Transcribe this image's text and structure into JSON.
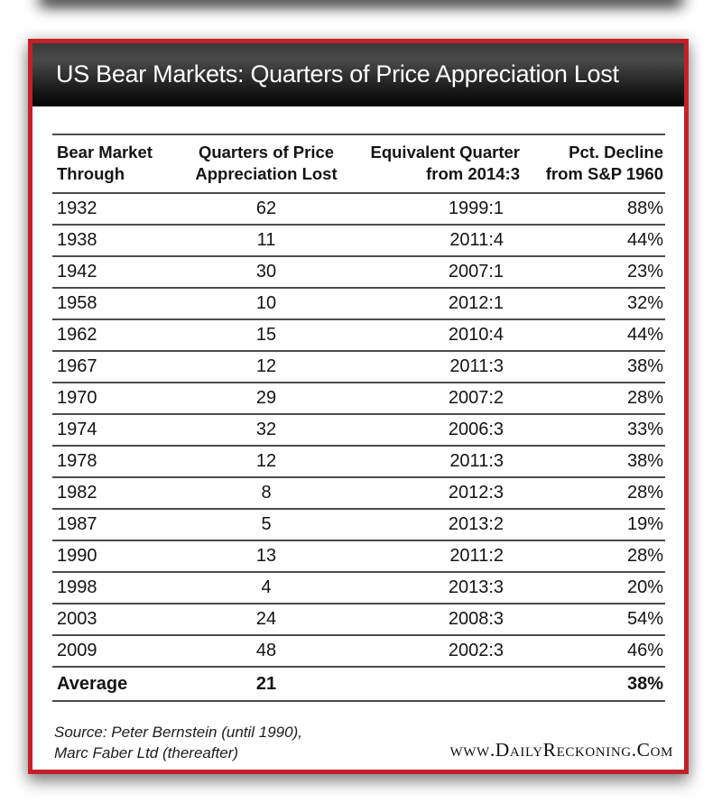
{
  "title": "US Bear Markets: Quarters of Price Appreciation Lost",
  "table": {
    "columns": [
      {
        "line1": "Bear Market",
        "line2": "Through"
      },
      {
        "line1": "Quarters of Price",
        "line2": "Appreciation Lost"
      },
      {
        "line1": "Equivalent Quarter",
        "line2": "from 2014:3"
      },
      {
        "line1": "Pct. Decline",
        "line2": "from S&P 1960"
      }
    ],
    "rows": [
      {
        "year": "1932",
        "quarters": "62",
        "equivalent": "1999:1",
        "decline": "88%"
      },
      {
        "year": "1938",
        "quarters": "11",
        "equivalent": "2011:4",
        "decline": "44%"
      },
      {
        "year": "1942",
        "quarters": "30",
        "equivalent": "2007:1",
        "decline": "23%"
      },
      {
        "year": "1958",
        "quarters": "10",
        "equivalent": "2012:1",
        "decline": "32%"
      },
      {
        "year": "1962",
        "quarters": "15",
        "equivalent": "2010:4",
        "decline": "44%"
      },
      {
        "year": "1967",
        "quarters": "12",
        "equivalent": "2011:3",
        "decline": "38%"
      },
      {
        "year": "1970",
        "quarters": "29",
        "equivalent": "2007:2",
        "decline": "28%"
      },
      {
        "year": "1974",
        "quarters": "32",
        "equivalent": "2006:3",
        "decline": "33%"
      },
      {
        "year": "1978",
        "quarters": "12",
        "equivalent": "2011:3",
        "decline": "38%"
      },
      {
        "year": "1982",
        "quarters": "8",
        "equivalent": "2012:3",
        "decline": "28%"
      },
      {
        "year": "1987",
        "quarters": "5",
        "equivalent": "2013:2",
        "decline": "19%"
      },
      {
        "year": "1990",
        "quarters": "13",
        "equivalent": "2011:2",
        "decline": "28%"
      },
      {
        "year": "1998",
        "quarters": "4",
        "equivalent": "2013:3",
        "decline": "20%"
      },
      {
        "year": "2003",
        "quarters": "24",
        "equivalent": "2008:3",
        "decline": "54%"
      },
      {
        "year": "2009",
        "quarters": "48",
        "equivalent": "2002:3",
        "decline": "46%"
      }
    ],
    "average": {
      "label": "Average",
      "quarters": "21",
      "equivalent": "",
      "decline": "38%"
    }
  },
  "footer": {
    "source_line1": "Source: Peter Bernstein (until 1990),",
    "source_line2": "Marc Faber Ltd (thereafter)",
    "website": "www.DailyReckoning.Com"
  },
  "colors": {
    "accent_red": "#c32127",
    "banner_gradient_top": "#3a3a3a",
    "banner_gradient_bottom": "#040404",
    "rule_gray": "#4c4c4c",
    "text": "#141414"
  },
  "chart_data": {
    "type": "table",
    "title": "US Bear Markets: Quarters of Price Appreciation Lost",
    "columns": [
      "Bear Market Through",
      "Quarters of Price Appreciation Lost",
      "Equivalent Quarter from 2014:3",
      "Pct. Decline from S&P 1960"
    ],
    "rows": [
      [
        "1932",
        62,
        "1999:1",
        "88%"
      ],
      [
        "1938",
        11,
        "2011:4",
        "44%"
      ],
      [
        "1942",
        30,
        "2007:1",
        "23%"
      ],
      [
        "1958",
        10,
        "2012:1",
        "32%"
      ],
      [
        "1962",
        15,
        "2010:4",
        "44%"
      ],
      [
        "1967",
        12,
        "2011:3",
        "38%"
      ],
      [
        "1970",
        29,
        "2007:2",
        "28%"
      ],
      [
        "1974",
        32,
        "2006:3",
        "33%"
      ],
      [
        "1978",
        12,
        "2011:3",
        "38%"
      ],
      [
        "1982",
        8,
        "2012:3",
        "28%"
      ],
      [
        "1987",
        5,
        "2013:2",
        "19%"
      ],
      [
        "1990",
        13,
        "2011:2",
        "28%"
      ],
      [
        "1998",
        4,
        "2013:3",
        "20%"
      ],
      [
        "2003",
        24,
        "2008:3",
        "54%"
      ],
      [
        "2009",
        48,
        "2002:3",
        "46%"
      ]
    ],
    "average_row": [
      "Average",
      21,
      "",
      "38%"
    ],
    "source": "Source: Peter Bernstein (until 1990), Marc Faber Ltd (thereafter)",
    "credit": "www.DailyReckoning.Com"
  }
}
